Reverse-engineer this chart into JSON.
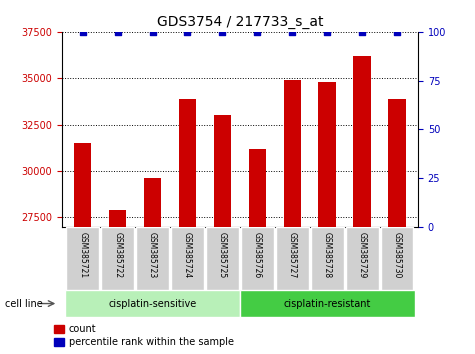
{
  "title": "GDS3754 / 217733_s_at",
  "samples": [
    "GSM385721",
    "GSM385722",
    "GSM385723",
    "GSM385724",
    "GSM385725",
    "GSM385726",
    "GSM385727",
    "GSM385728",
    "GSM385729",
    "GSM385730"
  ],
  "counts": [
    31500,
    27900,
    29600,
    33900,
    33000,
    31200,
    34900,
    34800,
    36200,
    33900
  ],
  "percentile_ranks": [
    100,
    100,
    100,
    100,
    100,
    100,
    100,
    100,
    100,
    100
  ],
  "bar_color": "#cc0000",
  "dot_color": "#0000bb",
  "ylim_left": [
    27000,
    37500
  ],
  "yticks_left": [
    27500,
    30000,
    32500,
    35000,
    37500
  ],
  "ylim_right": [
    0,
    100
  ],
  "yticks_right": [
    0,
    25,
    50,
    75,
    100
  ],
  "groups": [
    {
      "label": "cisplatin-sensitive",
      "start": 0,
      "end": 5,
      "color": "#b8f0b8"
    },
    {
      "label": "cisplatin-resistant",
      "start": 5,
      "end": 10,
      "color": "#44cc44"
    }
  ],
  "cell_line_label": "cell line",
  "legend_count_label": "count",
  "legend_pct_label": "percentile rank within the sample",
  "title_fontsize": 10,
  "tick_fontsize": 7,
  "label_fontsize": 7,
  "background_color": "#ffffff",
  "plot_bg_color": "#ffffff",
  "grid_color": "#000000",
  "bar_bottom": 27000,
  "sample_box_color": "#d0d0d0"
}
